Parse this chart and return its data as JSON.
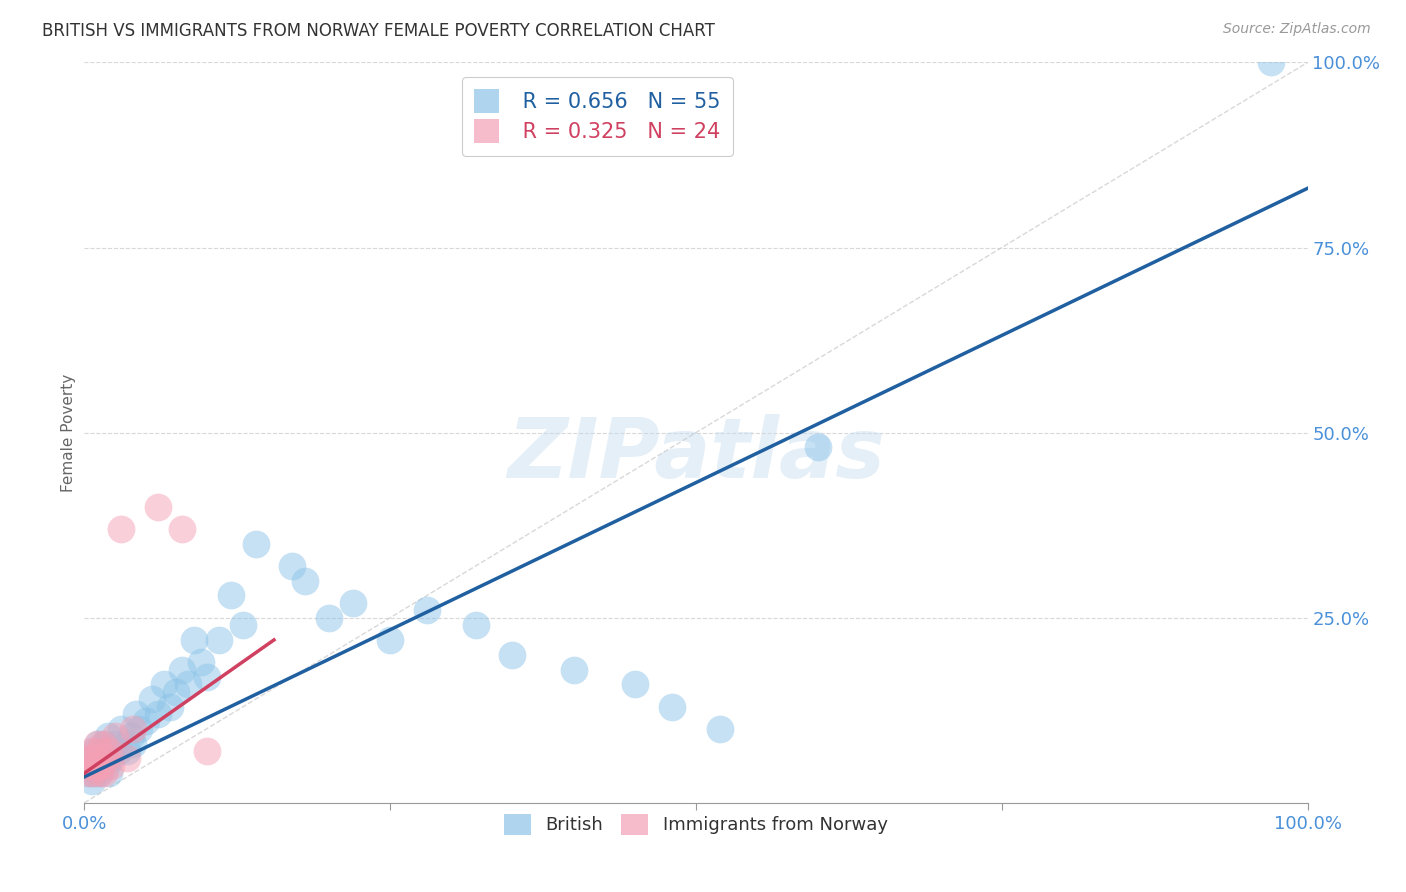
{
  "title": "BRITISH VS IMMIGRANTS FROM NORWAY FEMALE POVERTY CORRELATION CHART",
  "source": "Source: ZipAtlas.com",
  "ylabel": "Female Poverty",
  "xlim": [
    0,
    1
  ],
  "ylim": [
    0,
    1
  ],
  "xticks": [
    0.0,
    0.25,
    0.5,
    0.75,
    1.0
  ],
  "xticklabels": [
    "0.0%",
    "",
    "",
    "",
    "100.0%"
  ],
  "yticks_right": [
    0.25,
    0.5,
    0.75,
    1.0
  ],
  "yticklabels_right": [
    "25.0%",
    "50.0%",
    "75.0%",
    "100.0%"
  ],
  "british_color": "#8dc4e8",
  "norway_color": "#f4a0b5",
  "british_r": 0.656,
  "british_n": 55,
  "norway_r": 0.325,
  "norway_n": 24,
  "trendline_blue_color": "#2060a0",
  "trendline_pink_color": "#d04060",
  "trendline_dashed_color": "#c8c8c8",
  "watermark": "ZIPatlas",
  "background_color": "#ffffff",
  "grid_color": "#d8d8d8",
  "title_color": "#333333",
  "tick_color": "#4a90d9",
  "axis_color": "#999999",
  "british_x": [
    0.004,
    0.005,
    0.006,
    0.007,
    0.008,
    0.009,
    0.01,
    0.011,
    0.012,
    0.013,
    0.014,
    0.015,
    0.016,
    0.017,
    0.018,
    0.019,
    0.02,
    0.022,
    0.025,
    0.028,
    0.03,
    0.035,
    0.038,
    0.04,
    0.042,
    0.045,
    0.05,
    0.055,
    0.06,
    0.065,
    0.07,
    0.075,
    0.08,
    0.085,
    0.09,
    0.095,
    0.1,
    0.11,
    0.12,
    0.13,
    0.14,
    0.17,
    0.18,
    0.2,
    0.22,
    0.25,
    0.28,
    0.32,
    0.35,
    0.4,
    0.45,
    0.48,
    0.52,
    0.97,
    0.6
  ],
  "british_y": [
    0.04,
    0.05,
    0.03,
    0.06,
    0.04,
    0.07,
    0.05,
    0.08,
    0.04,
    0.06,
    0.05,
    0.07,
    0.06,
    0.08,
    0.05,
    0.09,
    0.04,
    0.06,
    0.08,
    0.07,
    0.1,
    0.07,
    0.09,
    0.08,
    0.12,
    0.1,
    0.11,
    0.14,
    0.12,
    0.16,
    0.13,
    0.15,
    0.18,
    0.16,
    0.22,
    0.19,
    0.17,
    0.22,
    0.28,
    0.24,
    0.35,
    0.32,
    0.3,
    0.25,
    0.27,
    0.22,
    0.26,
    0.24,
    0.2,
    0.18,
    0.16,
    0.13,
    0.1,
    1.0,
    0.48
  ],
  "norway_x": [
    0.003,
    0.004,
    0.005,
    0.006,
    0.007,
    0.008,
    0.009,
    0.01,
    0.011,
    0.012,
    0.013,
    0.014,
    0.015,
    0.016,
    0.018,
    0.02,
    0.022,
    0.025,
    0.03,
    0.035,
    0.04,
    0.06,
    0.08,
    0.1
  ],
  "norway_y": [
    0.04,
    0.06,
    0.05,
    0.07,
    0.04,
    0.06,
    0.05,
    0.08,
    0.05,
    0.07,
    0.04,
    0.05,
    0.08,
    0.04,
    0.06,
    0.07,
    0.05,
    0.09,
    0.37,
    0.06,
    0.1,
    0.4,
    0.37,
    0.07
  ],
  "blue_trend_x": [
    0.0,
    1.0
  ],
  "blue_trend_y": [
    0.035,
    0.83
  ],
  "pink_trend_x": [
    0.0,
    0.155
  ],
  "pink_trend_y": [
    0.04,
    0.22
  ]
}
